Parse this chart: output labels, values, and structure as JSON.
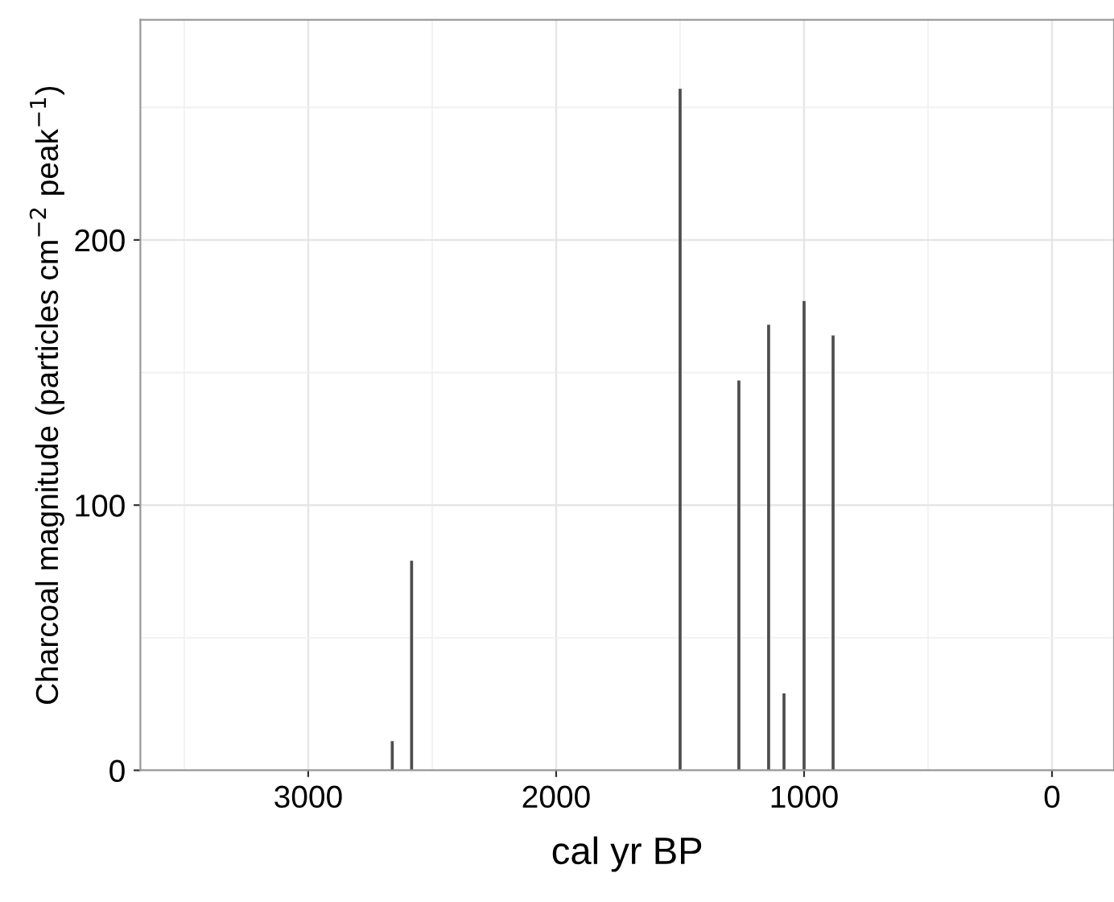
{
  "chart_data": {
    "type": "bar",
    "xlabel": "cal yr BP",
    "ylabel": "Charcoal magnitude (particles cm$^{−2}$ peak$^{−1}$)",
    "x": [
      2661,
      2583,
      1500,
      1263,
      1143,
      1081,
      1000,
      883
    ],
    "values": [
      11,
      79,
      257,
      147,
      168,
      29,
      177,
      164
    ],
    "color": "#4d4d4d",
    "xlim": [
      3677,
      -250
    ],
    "xticks": [
      {
        "value": 3500,
        "label": null
      },
      3000,
      {
        "value": 2500,
        "label": null
      },
      2000,
      {
        "value": 1500,
        "label": null
      },
      1000,
      {
        "value": 500,
        "label": null
      },
      0
    ],
    "ylim": [
      0,
      283
    ],
    "yticks": [
      0,
      {
        "value": 50,
        "label": null
      },
      100,
      {
        "value": 150,
        "label": null
      },
      200,
      {
        "value": 250,
        "label": null
      }
    ],
    "grid": true
  }
}
